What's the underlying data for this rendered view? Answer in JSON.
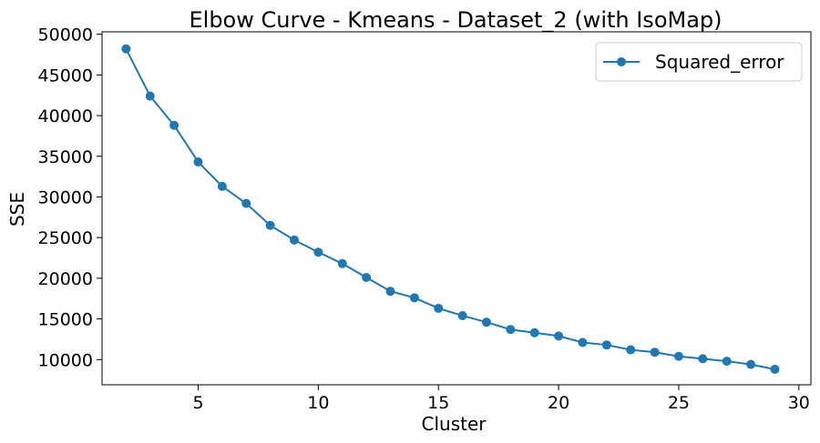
{
  "chart_data": {
    "type": "line",
    "title": "Elbow Curve - Kmeans - Dataset_2 (with IsoMap)",
    "xlabel": "Cluster",
    "ylabel": "SSE",
    "xlim": [
      1.0,
      30.5
    ],
    "ylim": [
      6900,
      50300
    ],
    "x_ticks": [
      5,
      10,
      15,
      20,
      25,
      30
    ],
    "y_ticks": [
      10000,
      15000,
      20000,
      25000,
      30000,
      35000,
      40000,
      45000,
      50000
    ],
    "grid": false,
    "legend_position": "top-right",
    "series": [
      {
        "name": "Squared_error",
        "color": "#1f77b4",
        "marker": "circle",
        "x": [
          2,
          3,
          4,
          5,
          6,
          7,
          8,
          9,
          10,
          11,
          12,
          13,
          14,
          15,
          16,
          17,
          18,
          19,
          20,
          21,
          22,
          23,
          24,
          25,
          26,
          27,
          28,
          29
        ],
        "values": [
          48200,
          42400,
          38800,
          34300,
          31300,
          29200,
          26500,
          24700,
          23200,
          21800,
          20100,
          18400,
          17600,
          16300,
          15400,
          14600,
          13700,
          13300,
          12900,
          12100,
          11800,
          11200,
          10900,
          10400,
          10100,
          9800,
          9400,
          8800
        ]
      }
    ]
  }
}
